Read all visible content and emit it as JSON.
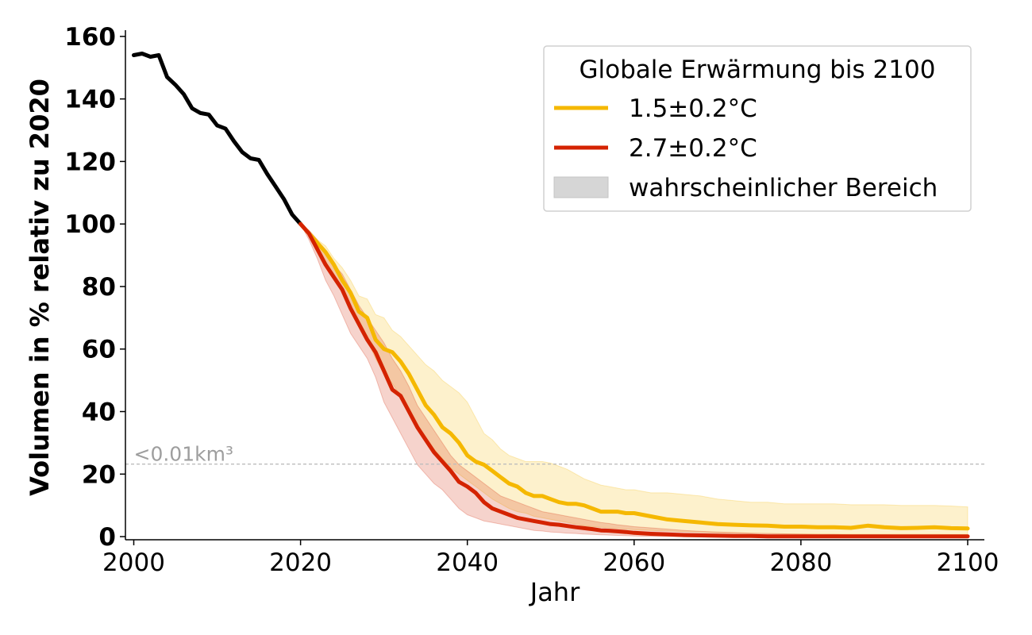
{
  "chart_data": {
    "type": "line",
    "xlabel": "Jahr",
    "ylabel": "Volumen in % relativ zu 2020",
    "xlim": [
      1999,
      2102
    ],
    "ylim": [
      -1,
      162
    ],
    "xticks": [
      2000,
      2020,
      2040,
      2060,
      2080,
      2100
    ],
    "yticks": [
      0,
      20,
      40,
      60,
      80,
      100,
      120,
      140,
      160
    ],
    "grid": false,
    "legend": {
      "title": "Globale Erwärmung bis 2100",
      "placement": "top-right",
      "entries": [
        "1.5±0.2°C",
        "2.7±0.2°C",
        "wahrscheinlicher Bereich"
      ]
    },
    "reference_line": {
      "y": 23.2,
      "label": "<0.01km³",
      "style": "dashed"
    },
    "historical": {
      "color": "#000000",
      "x": [
        2000,
        2001,
        2002,
        2003,
        2004,
        2005,
        2006,
        2007,
        2008,
        2009,
        2010,
        2011,
        2012,
        2013,
        2014,
        2015,
        2016,
        2017,
        2018,
        2019,
        2020
      ],
      "y": [
        154,
        154.5,
        153.5,
        154,
        147,
        144.5,
        141.5,
        137,
        135.5,
        135,
        131.5,
        130.5,
        126.5,
        123,
        121,
        120.5,
        116,
        112,
        108,
        103,
        100
      ]
    },
    "series": [
      {
        "name": "1.5±0.2°C",
        "color": "#f5b800",
        "x": [
          2020,
          2021,
          2022,
          2023,
          2024,
          2025,
          2026,
          2027,
          2028,
          2029,
          2030,
          2031,
          2032,
          2033,
          2034,
          2035,
          2036,
          2037,
          2038,
          2039,
          2040,
          2041,
          2042,
          2043,
          2044,
          2045,
          2046,
          2047,
          2048,
          2049,
          2050,
          2051,
          2052,
          2053,
          2054,
          2055,
          2056,
          2057,
          2058,
          2059,
          2060,
          2062,
          2064,
          2066,
          2068,
          2070,
          2072,
          2074,
          2076,
          2078,
          2080,
          2082,
          2084,
          2086,
          2088,
          2090,
          2092,
          2094,
          2096,
          2098,
          2100
        ],
        "y": [
          100,
          97,
          94,
          91,
          87,
          82,
          78,
          72,
          70,
          63,
          60,
          59,
          56,
          52,
          47,
          42,
          39,
          35,
          33,
          30,
          26,
          24,
          23,
          21,
          19,
          17,
          16,
          14,
          13,
          13,
          12,
          11,
          10.5,
          10.5,
          10,
          9,
          8,
          8,
          8,
          7.5,
          7.5,
          6.5,
          5.5,
          5,
          4.5,
          4,
          3.8,
          3.6,
          3.5,
          3.2,
          3.2,
          3,
          3,
          2.8,
          3.5,
          3,
          2.7,
          2.8,
          3,
          2.7,
          2.6
        ],
        "band_upper": [
          100,
          98,
          95,
          93,
          89,
          86,
          82,
          77,
          76,
          71,
          70,
          66,
          64,
          61,
          58,
          55,
          53,
          50,
          48,
          46,
          43,
          38,
          33,
          31,
          28,
          26,
          25,
          24,
          24,
          24,
          23.5,
          22.5,
          21.5,
          20,
          18.5,
          17.5,
          16.5,
          16,
          15.5,
          15,
          15,
          14,
          14,
          13.5,
          13,
          12,
          11.5,
          11,
          11,
          10.5,
          10.5,
          10.5,
          10.5,
          10.2,
          10.2,
          10.2,
          10,
          10,
          10,
          9.8,
          9.5
        ],
        "band_lower": [
          100,
          96,
          92,
          88,
          84,
          78,
          73,
          67,
          63,
          57,
          52,
          49,
          45,
          40,
          36,
          31,
          28,
          25,
          22,
          20,
          18,
          16,
          14,
          12,
          10.5,
          9,
          8,
          7.5,
          6.5,
          6,
          5.5,
          5,
          4.5,
          4,
          3.5,
          3.2,
          3,
          2.8,
          2.6,
          2.4,
          2.2,
          2,
          1.8,
          1.6,
          1.4,
          1.2,
          1.1,
          1,
          1,
          0.9,
          0.9,
          0.9,
          0.8,
          0.8,
          0.8,
          0.8,
          0.8,
          0.8,
          0.8,
          0.7,
          0.7
        ]
      },
      {
        "name": "2.7±0.2°C",
        "color": "#d42300",
        "x": [
          2020,
          2021,
          2022,
          2023,
          2024,
          2025,
          2026,
          2027,
          2028,
          2029,
          2030,
          2031,
          2032,
          2033,
          2034,
          2035,
          2036,
          2037,
          2038,
          2039,
          2040,
          2041,
          2042,
          2043,
          2044,
          2045,
          2046,
          2047,
          2048,
          2049,
          2050,
          2051,
          2052,
          2053,
          2054,
          2055,
          2056,
          2057,
          2058,
          2059,
          2060,
          2062,
          2064,
          2066,
          2068,
          2070,
          2072,
          2074,
          2076,
          2078,
          2080,
          2082,
          2084,
          2086,
          2088,
          2090,
          2092,
          2094,
          2096,
          2098,
          2100
        ],
        "y": [
          100,
          97,
          92,
          87,
          83,
          79,
          73,
          68,
          63,
          59,
          53,
          47,
          45,
          40,
          35,
          31,
          27,
          24,
          21,
          17.5,
          16,
          14,
          11,
          9,
          8,
          7,
          6,
          5.5,
          5,
          4.5,
          4,
          3.8,
          3.4,
          3,
          2.7,
          2.4,
          2,
          1.9,
          1.7,
          1.5,
          1.2,
          0.9,
          0.7,
          0.5,
          0.4,
          0.3,
          0.2,
          0.2,
          0.1,
          0.1,
          0.1,
          0.1,
          0.1,
          0.1,
          0.1,
          0.1,
          0.1,
          0.1,
          0.1,
          0.1,
          0.1
        ],
        "band_upper": [
          100,
          98,
          95,
          91,
          87,
          84,
          79,
          74,
          70,
          66,
          62,
          57,
          53,
          48,
          42,
          38,
          34,
          30,
          26,
          23,
          21,
          19,
          17,
          15,
          13,
          12,
          11,
          10,
          9,
          8,
          7.5,
          7,
          6.5,
          6,
          5.5,
          5,
          4.5,
          4.2,
          3.8,
          3.5,
          3.2,
          2.8,
          2.4,
          2,
          1.7,
          1.5,
          1.3,
          1.1,
          1,
          0.9,
          0.8,
          0.7,
          0.7,
          0.6,
          0.6,
          0.6,
          0.5,
          0.5,
          0.5,
          0.5,
          0.5
        ],
        "band_lower": [
          100,
          95,
          89,
          82,
          77,
          71,
          65,
          61,
          57,
          51,
          43,
          38,
          33,
          28,
          23,
          20,
          17,
          15,
          12,
          9,
          7,
          6,
          5,
          4.5,
          4,
          3.5,
          3,
          2.5,
          2,
          1.8,
          1.5,
          1.3,
          1.1,
          1,
          0.8,
          0.7,
          0.6,
          0.5,
          0.4,
          0.3,
          0.2,
          0.1,
          0.1,
          0,
          0,
          0,
          0,
          0,
          0,
          0,
          0,
          0,
          0,
          0,
          0,
          0,
          0,
          0,
          0,
          0,
          0
        ]
      }
    ]
  }
}
